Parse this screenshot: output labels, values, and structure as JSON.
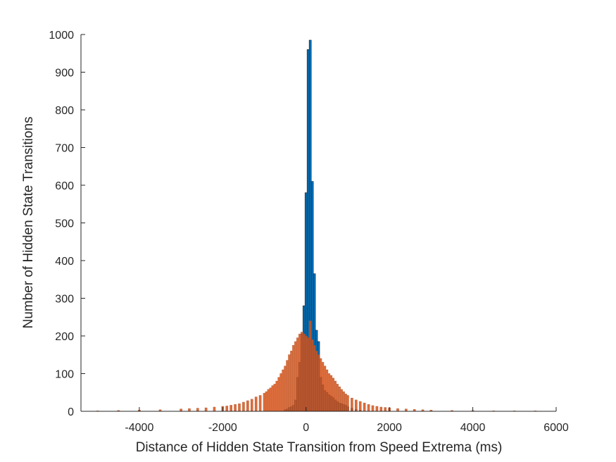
{
  "chart_data": {
    "type": "bar",
    "title": "",
    "xlabel": "Distance of Hidden State Transition from Speed Extrema (ms)",
    "ylabel": "Number of Hidden State Transitions",
    "xlim": [
      -5400,
      6000
    ],
    "ylim": [
      0,
      1000
    ],
    "xticks": [
      -4000,
      -2000,
      0,
      2000,
      4000,
      6000
    ],
    "xtick_labels": [
      "-4000",
      "-2000",
      "0",
      "2000",
      "4000",
      "6000"
    ],
    "yticks": [
      0,
      100,
      200,
      300,
      400,
      500,
      600,
      700,
      800,
      900,
      1000
    ],
    "ytick_labels": [
      "0",
      "100",
      "200",
      "300",
      "400",
      "500",
      "600",
      "700",
      "800",
      "900",
      "1000"
    ],
    "grid": false,
    "bin_width": 50,
    "colors": {
      "series1": "#0072BD",
      "series1_edge": "#1a2a38",
      "series2": "#D95319",
      "series2_edge": "#b8501f"
    },
    "series": [
      {
        "x": [
          -500,
          -450,
          -400,
          -350,
          -300,
          -250,
          -200,
          -150,
          -100,
          -50,
          0,
          50,
          100,
          150,
          200,
          250,
          300,
          350,
          400,
          450,
          500,
          550,
          600,
          650,
          700,
          750,
          800,
          850,
          900,
          950,
          1000,
          1100,
          1200,
          1300
        ],
        "values": [
          4,
          6,
          10,
          12,
          16,
          30,
          90,
          130,
          205,
          280,
          580,
          960,
          985,
          610,
          365,
          215,
          185,
          90,
          70,
          55,
          50,
          44,
          40,
          36,
          30,
          26,
          22,
          20,
          18,
          16,
          12,
          8,
          5,
          3
        ]
      },
      {
        "x": [
          -5000,
          -4500,
          -4000,
          -3500,
          -3000,
          -2800,
          -2600,
          -2400,
          -2200,
          -2000,
          -1900,
          -1800,
          -1700,
          -1600,
          -1500,
          -1400,
          -1300,
          -1200,
          -1100,
          -1000,
          -950,
          -900,
          -850,
          -800,
          -750,
          -700,
          -650,
          -600,
          -550,
          -500,
          -450,
          -400,
          -350,
          -300,
          -250,
          -200,
          -150,
          -100,
          -50,
          0,
          50,
          100,
          150,
          200,
          250,
          300,
          350,
          400,
          450,
          500,
          550,
          600,
          650,
          700,
          750,
          800,
          850,
          900,
          950,
          1000,
          1100,
          1200,
          1300,
          1400,
          1500,
          1600,
          1700,
          1800,
          1900,
          2000,
          2200,
          2400,
          2600,
          2800,
          3000,
          3500,
          4000,
          4500,
          5000,
          5500,
          6000
        ],
        "values": [
          1,
          2,
          3,
          4,
          6,
          7,
          8,
          9,
          11,
          13,
          14,
          16,
          18,
          20,
          24,
          28,
          32,
          38,
          42,
          48,
          52,
          58,
          62,
          68,
          72,
          80,
          90,
          100,
          110,
          120,
          135,
          150,
          160,
          175,
          185,
          195,
          205,
          210,
          205,
          200,
          195,
          240,
          190,
          175,
          160,
          150,
          140,
          130,
          120,
          110,
          100,
          95,
          88,
          80,
          72,
          65,
          58,
          52,
          46,
          42,
          35,
          30,
          26,
          22,
          18,
          15,
          13,
          11,
          10,
          9,
          7,
          6,
          5,
          4,
          3,
          2,
          2,
          1,
          1,
          1,
          0
        ]
      }
    ]
  }
}
